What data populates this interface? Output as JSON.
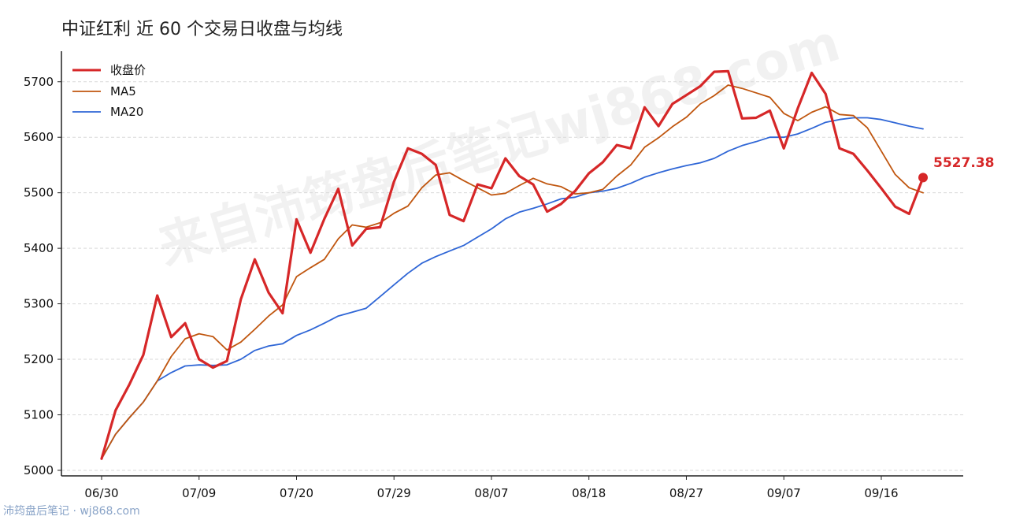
{
  "chart_data": {
    "type": "line",
    "title": "中证红利 近 60 个交易日收盘与均线",
    "xlabel": "",
    "ylabel": "",
    "ylim": [
      4990,
      5755
    ],
    "yticks": [
      5000,
      5100,
      5200,
      5300,
      5400,
      5500,
      5600,
      5700
    ],
    "xtick_labels": [
      "06/30",
      "07/09",
      "07/20",
      "07/29",
      "08/07",
      "08/18",
      "08/27",
      "09/07",
      "09/16"
    ],
    "xtick_index": [
      0,
      7,
      14,
      21,
      28,
      35,
      42,
      49,
      56
    ],
    "x": [
      "06/30",
      "07/01",
      "07/02",
      "07/03",
      "07/04",
      "07/07",
      "07/08",
      "07/09",
      "07/10",
      "07/11",
      "07/14",
      "07/15",
      "07/16",
      "07/17",
      "07/20",
      "07/21",
      "07/22",
      "07/23",
      "07/24",
      "07/25",
      "07/28",
      "07/29",
      "07/30",
      "07/31",
      "08/01",
      "08/04",
      "08/05",
      "08/06",
      "08/07",
      "08/08",
      "08/11",
      "08/12",
      "08/13",
      "08/14",
      "08/15",
      "08/18",
      "08/19",
      "08/20",
      "08/21",
      "08/22",
      "08/25",
      "08/26",
      "08/27",
      "08/28",
      "08/29",
      "09/01",
      "09/02",
      "09/03",
      "09/04",
      "09/07",
      "09/08",
      "09/09",
      "09/10",
      "09/11",
      "09/12",
      "09/15",
      "09/16",
      "09/17",
      "09/18",
      "09/19"
    ],
    "series": [
      {
        "name": "收盘价",
        "color": "#d62728",
        "values": [
          5021,
          5108,
          5155,
          5208,
          5315,
          5240,
          5265,
          5200,
          5185,
          5197,
          5308,
          5380,
          5320,
          5283,
          5452,
          5392,
          5453,
          5507,
          5405,
          5435,
          5438,
          5520,
          5580,
          5570,
          5550,
          5460,
          5449,
          5515,
          5508,
          5562,
          5530,
          5515,
          5466,
          5480,
          5503,
          5535,
          5555,
          5586,
          5580,
          5654,
          5620,
          5660,
          5676,
          5692,
          5718,
          5719,
          5634,
          5635,
          5648,
          5580,
          5652,
          5716,
          5678,
          5580,
          5570,
          5540,
          5508,
          5475,
          5462,
          5527.38
        ]
      },
      {
        "name": "MA5",
        "color": "#c0560f",
        "values": [
          5021,
          5065,
          5095,
          5123,
          5161,
          5205,
          5237,
          5246,
          5241,
          5217,
          5231,
          5254,
          5278,
          5298,
          5349,
          5365,
          5380,
          5417,
          5442,
          5438,
          5446,
          5463,
          5476,
          5509,
          5532,
          5536,
          5522,
          5509,
          5496,
          5499,
          5513,
          5526,
          5516,
          5511,
          5498,
          5500,
          5506,
          5530,
          5550,
          5582,
          5599,
          5619,
          5636,
          5660,
          5675,
          5694,
          5688,
          5680,
          5672,
          5643,
          5630,
          5645,
          5655,
          5641,
          5639,
          5617,
          5575,
          5533,
          5509,
          5500
        ]
      },
      {
        "name": "MA20",
        "color": "#2f66d6",
        "values": [
          5021,
          5065,
          5095,
          5123,
          5161,
          5176,
          5188,
          5190,
          5189,
          5190,
          5200,
          5216,
          5224,
          5228,
          5243,
          5253,
          5265,
          5278,
          5285,
          5292,
          5313,
          5334,
          5355,
          5373,
          5385,
          5395,
          5405,
          5420,
          5435,
          5453,
          5465,
          5472,
          5480,
          5489,
          5492,
          5500,
          5503,
          5508,
          5517,
          5528,
          5536,
          5543,
          5549,
          5554,
          5562,
          5575,
          5585,
          5592,
          5600,
          5600,
          5606,
          5616,
          5627,
          5632,
          5635,
          5635,
          5632,
          5626,
          5620,
          5615
        ]
      }
    ],
    "last_value_label": "5527.38",
    "grid": "horizontal-dashed",
    "legend_position": "top-left"
  },
  "footer": "沛筠盘后笔记 · wj868.com",
  "watermark": "来自沛筠盘后笔记wj868.com"
}
